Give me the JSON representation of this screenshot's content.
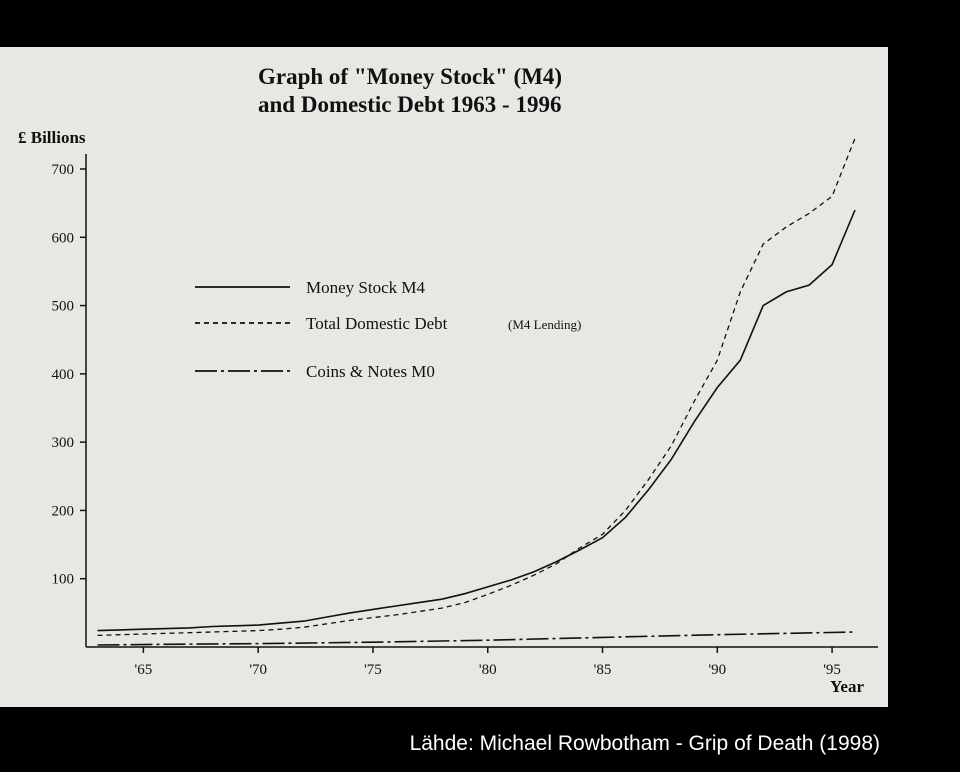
{
  "caption": "Lähde: Michael Rowbotham - Grip of Death (1998)",
  "chart_data": {
    "type": "line",
    "title_line1": "Graph of \"Money Stock\" (M4)",
    "title_line2": "and Domestic Debt  1963 - 1996",
    "ylabel": "£ Billions",
    "xlabel": "Year",
    "ylim": [
      0,
      700
    ],
    "xlim": [
      1962.5,
      1997
    ],
    "yticks": [
      100,
      200,
      300,
      400,
      500,
      600,
      700
    ],
    "xticks": [
      1965,
      1970,
      1975,
      1980,
      1985,
      1990,
      1995
    ],
    "xtick_labels": [
      "'65",
      "'70",
      "'75",
      "'80",
      "'85",
      "'90",
      "'95"
    ],
    "legend": [
      {
        "series": 0,
        "label": "Money Stock M4",
        "style": "solid"
      },
      {
        "series": 1,
        "label": "Total Domestic Debt",
        "note": "(M4 Lending)",
        "style": "dashed"
      },
      {
        "series": 2,
        "label": "Coins & Notes M0",
        "style": "dashdot"
      }
    ],
    "series": [
      {
        "name": "Money Stock M4",
        "style": "solid",
        "x": [
          1963,
          1964,
          1965,
          1966,
          1967,
          1968,
          1969,
          1970,
          1971,
          1972,
          1973,
          1974,
          1975,
          1976,
          1977,
          1978,
          1979,
          1980,
          1981,
          1982,
          1983,
          1984,
          1985,
          1986,
          1987,
          1988,
          1989,
          1990,
          1991,
          1992,
          1993,
          1994,
          1995,
          1996
        ],
        "y": [
          24,
          25,
          26,
          27,
          28,
          30,
          31,
          32,
          35,
          38,
          44,
          50,
          55,
          60,
          65,
          70,
          78,
          88,
          98,
          110,
          125,
          142,
          160,
          190,
          230,
          275,
          330,
          380,
          420,
          500,
          520,
          530,
          560,
          640
        ]
      },
      {
        "name": "Total Domestic Debt",
        "style": "dashed",
        "x": [
          1963,
          1964,
          1965,
          1966,
          1967,
          1968,
          1969,
          1970,
          1971,
          1972,
          1973,
          1974,
          1975,
          1976,
          1977,
          1978,
          1979,
          1980,
          1981,
          1982,
          1983,
          1984,
          1985,
          1986,
          1987,
          1988,
          1989,
          1990,
          1991,
          1992,
          1993,
          1994,
          1995,
          1996
        ],
        "y": [
          17,
          18,
          19,
          20,
          21,
          22,
          23,
          24,
          26,
          29,
          34,
          39,
          43,
          47,
          52,
          57,
          65,
          77,
          90,
          105,
          122,
          145,
          165,
          200,
          245,
          295,
          360,
          420,
          520,
          590,
          615,
          635,
          660,
          745
        ]
      },
      {
        "name": "Coins & Notes M0",
        "style": "dashdot",
        "x": [
          1963,
          1966,
          1970,
          1975,
          1980,
          1985,
          1990,
          1996
        ],
        "y": [
          3,
          4,
          5,
          7,
          10,
          14,
          18,
          22
        ]
      }
    ]
  }
}
